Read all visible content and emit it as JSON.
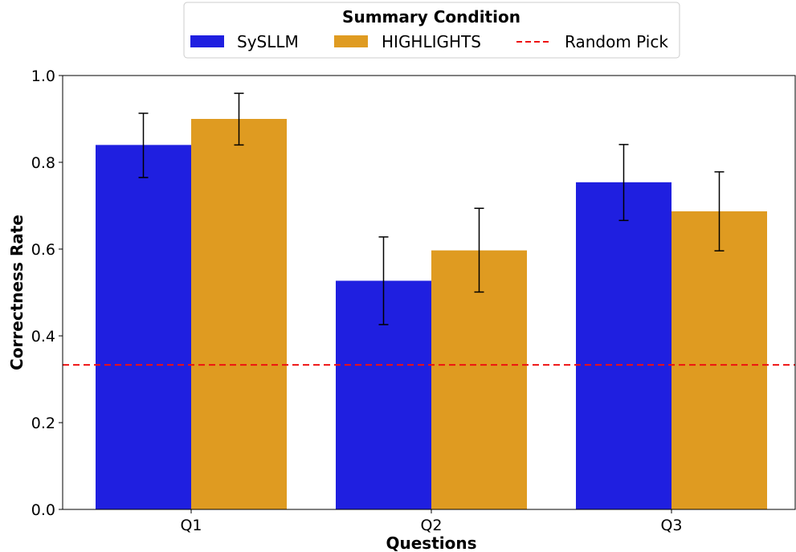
{
  "chart_data": {
    "type": "bar",
    "categories": [
      "Q1",
      "Q2",
      "Q3"
    ],
    "series": [
      {
        "name": "SySLLM",
        "color": "#1f1fe0",
        "values": [
          0.84,
          0.527,
          0.754
        ],
        "error_low": [
          0.765,
          0.426,
          0.666
        ],
        "error_high": [
          0.913,
          0.628,
          0.841
        ]
      },
      {
        "name": "HIGHLIGHTS",
        "color": "#df9b21",
        "values": [
          0.9,
          0.597,
          0.687
        ],
        "error_low": [
          0.84,
          0.501,
          0.596
        ],
        "error_high": [
          0.959,
          0.694,
          0.778
        ]
      }
    ],
    "reference_line": {
      "name": "Random Pick",
      "value": 0.333,
      "color": "#ee1111",
      "style": "dashed"
    },
    "xlabel": "Questions",
    "ylabel": "Correctness Rate",
    "ylim": [
      0,
      1.0
    ],
    "yticks": [
      "0.0",
      "0.2",
      "0.4",
      "0.6",
      "0.8",
      "1.0"
    ],
    "legend": {
      "title": "Summary Condition",
      "placement": "top-center"
    },
    "grid": false
  }
}
